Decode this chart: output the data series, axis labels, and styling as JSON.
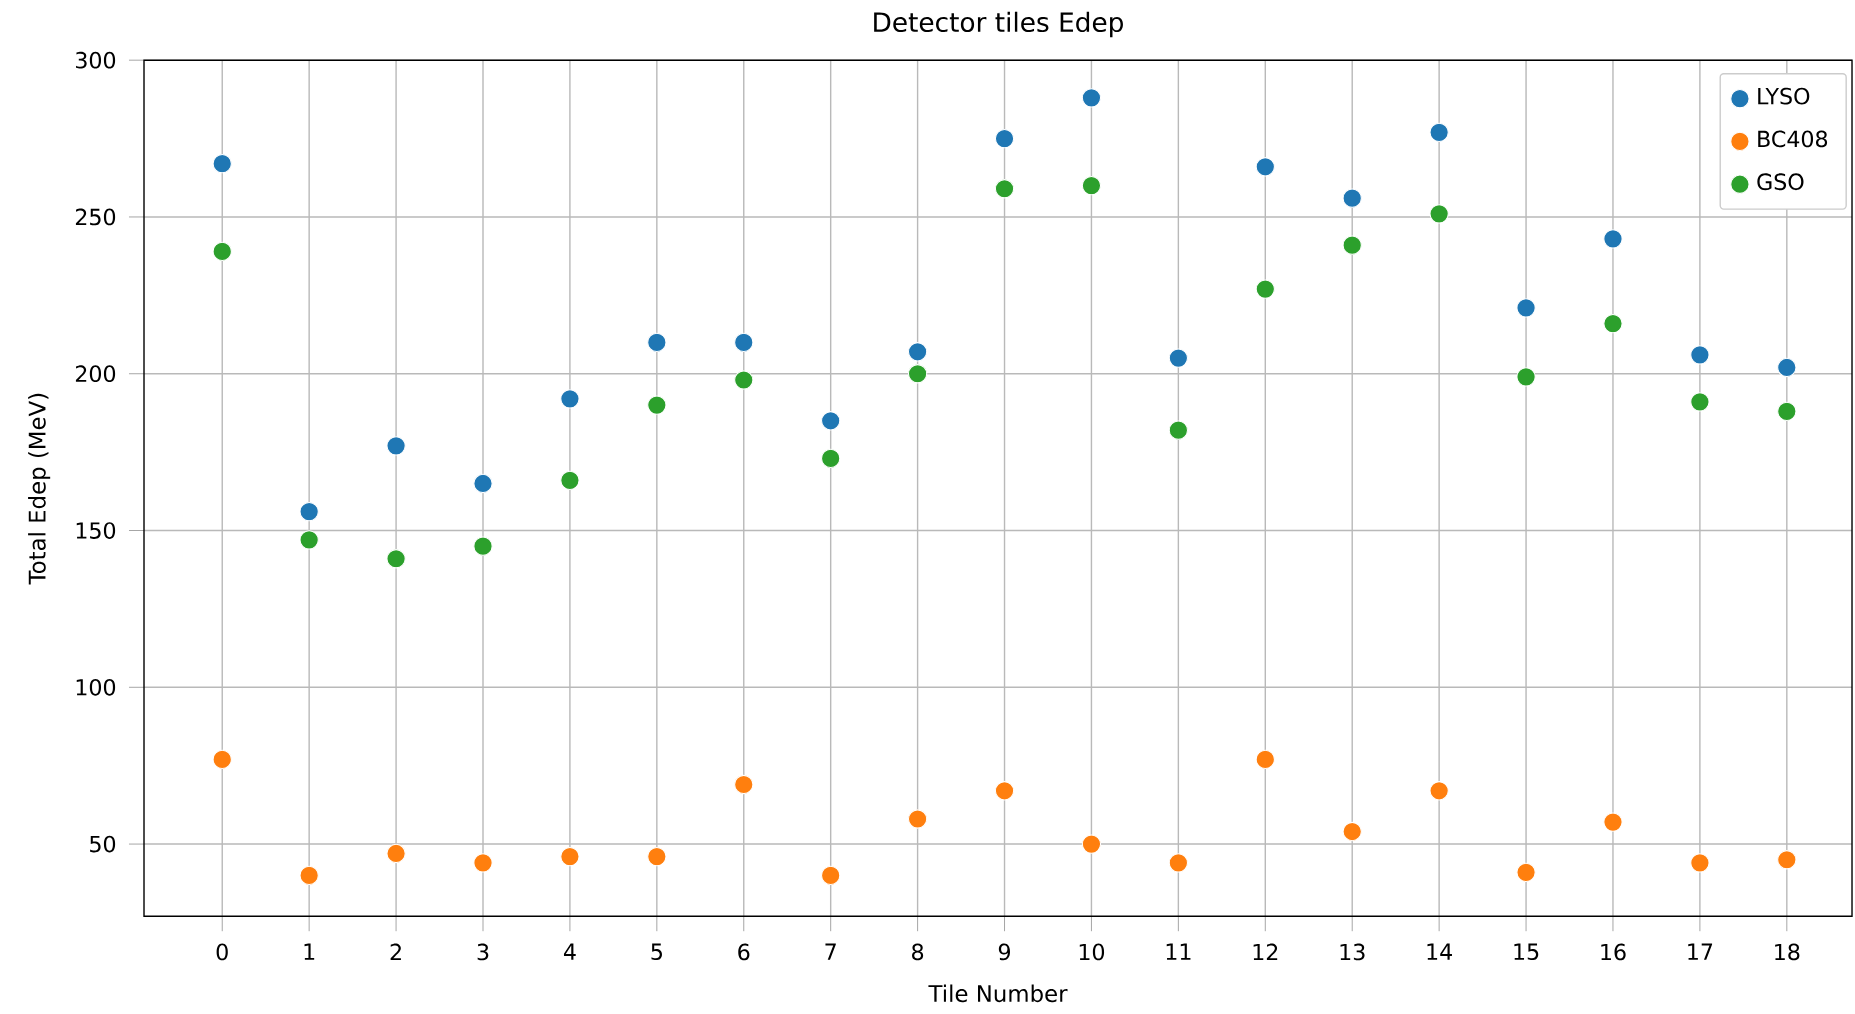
{
  "chart_data": {
    "type": "scatter",
    "title": "Detector tiles Edep",
    "xlabel": "Tile Number",
    "ylabel": "Total Edep (MeV)",
    "x": [
      0,
      1,
      2,
      3,
      4,
      5,
      6,
      7,
      8,
      9,
      10,
      11,
      12,
      13,
      14,
      15,
      16,
      17,
      18
    ],
    "series": [
      {
        "name": "LYSO",
        "color": "#1f77b4",
        "values": [
          267,
          156,
          177,
          165,
          192,
          210,
          210,
          185,
          207,
          275,
          288,
          205,
          266,
          256,
          277,
          221,
          243,
          206,
          202
        ]
      },
      {
        "name": "BC408",
        "color": "#ff7f0e",
        "values": [
          77,
          40,
          47,
          44,
          46,
          46,
          69,
          40,
          58,
          67,
          50,
          44,
          77,
          54,
          67,
          41,
          57,
          44,
          45
        ]
      },
      {
        "name": "GSO",
        "color": "#2ca02c",
        "values": [
          239,
          147,
          141,
          145,
          166,
          190,
          198,
          173,
          200,
          259,
          260,
          182,
          227,
          241,
          251,
          199,
          216,
          191,
          188
        ]
      }
    ],
    "xlim": [
      -0.9,
      18.75
    ],
    "xticks": [
      0,
      1,
      2,
      3,
      4,
      5,
      6,
      7,
      8,
      9,
      10,
      11,
      12,
      13,
      14,
      15,
      16,
      17,
      18
    ],
    "ylim": [
      27,
      300
    ],
    "yticks": [
      50,
      100,
      150,
      200,
      250,
      300
    ],
    "grid": true,
    "legend": "top right",
    "marker": "circle"
  }
}
